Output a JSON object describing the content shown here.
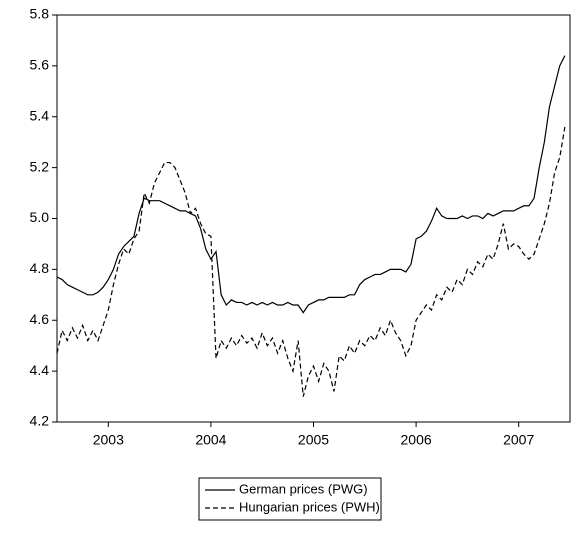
{
  "chart_data": {
    "type": "line",
    "x": [
      2003.0,
      2003.05,
      2003.1,
      2003.15,
      2003.2,
      2003.25,
      2003.3,
      2003.35,
      2003.4,
      2003.45,
      2003.5,
      2003.55,
      2003.6,
      2003.65,
      2003.7,
      2003.75,
      2003.8,
      2003.85,
      2003.9,
      2003.95,
      2004.0,
      2004.05,
      2004.1,
      2004.15,
      2004.2,
      2004.25,
      2004.3,
      2004.35,
      2004.4,
      2004.45,
      2004.5,
      2004.55,
      2004.6,
      2004.65,
      2004.7,
      2004.75,
      2004.8,
      2004.85,
      2004.9,
      2004.95,
      2005.0,
      2005.05,
      2005.1,
      2005.15,
      2005.2,
      2005.25,
      2005.3,
      2005.35,
      2005.4,
      2005.45,
      2005.5,
      2005.55,
      2005.6,
      2005.65,
      2005.7,
      2005.75,
      2005.8,
      2005.85,
      2005.9,
      2005.95,
      2006.0,
      2006.05,
      2006.1,
      2006.15,
      2006.2,
      2006.25,
      2006.3,
      2006.35,
      2006.4,
      2006.45,
      2006.5,
      2006.55,
      2006.6,
      2006.65,
      2006.7,
      2006.75,
      2006.8,
      2006.85,
      2006.9,
      2006.95,
      2007.0,
      2007.05,
      2007.1,
      2007.15,
      2007.2,
      2007.25,
      2007.3,
      2007.35,
      2007.4,
      2007.45,
      2007.5,
      2007.55,
      2007.6,
      2007.65,
      2007.7,
      2007.75,
      2007.8,
      2007.85,
      2007.9,
      2007.95
    ],
    "series": [
      {
        "name": "German prices (PWG)",
        "color": "#000000",
        "dash": "solid",
        "values": [
          4.77,
          4.76,
          4.74,
          4.73,
          4.72,
          4.71,
          4.7,
          4.7,
          4.71,
          4.73,
          4.76,
          4.8,
          4.86,
          4.89,
          4.91,
          4.93,
          5.02,
          5.08,
          5.07,
          5.07,
          5.07,
          5.06,
          5.05,
          5.04,
          5.03,
          5.03,
          5.02,
          5.01,
          4.96,
          4.88,
          4.84,
          4.87,
          4.7,
          4.66,
          4.68,
          4.67,
          4.67,
          4.66,
          4.67,
          4.66,
          4.67,
          4.66,
          4.67,
          4.66,
          4.66,
          4.67,
          4.66,
          4.66,
          4.63,
          4.66,
          4.67,
          4.68,
          4.68,
          4.69,
          4.69,
          4.69,
          4.69,
          4.7,
          4.7,
          4.74,
          4.76,
          4.77,
          4.78,
          4.78,
          4.79,
          4.8,
          4.8,
          4.8,
          4.79,
          4.82,
          4.92,
          4.93,
          4.95,
          4.99,
          5.04,
          5.01,
          5.0,
          5.0,
          5.0,
          5.01,
          5.0,
          5.01,
          5.01,
          5.0,
          5.02,
          5.01,
          5.02,
          5.03,
          5.03,
          5.03,
          5.04,
          5.05,
          5.05,
          5.08,
          5.2,
          5.3,
          5.44,
          5.52,
          5.6,
          5.64
        ]
      },
      {
        "name": "Hungarian prices (PWH)",
        "color": "#000000",
        "dash": "dashed",
        "values": [
          4.47,
          4.56,
          4.52,
          4.57,
          4.53,
          4.58,
          4.52,
          4.56,
          4.52,
          4.58,
          4.64,
          4.74,
          4.82,
          4.88,
          4.86,
          4.92,
          4.95,
          5.1,
          5.06,
          5.14,
          5.18,
          5.22,
          5.22,
          5.2,
          5.15,
          5.1,
          5.02,
          5.04,
          4.98,
          4.94,
          4.93,
          4.45,
          4.52,
          4.49,
          4.53,
          4.5,
          4.54,
          4.51,
          4.53,
          4.49,
          4.55,
          4.5,
          4.53,
          4.47,
          4.52,
          4.45,
          4.4,
          4.52,
          4.3,
          4.38,
          4.42,
          4.36,
          4.43,
          4.4,
          4.32,
          4.46,
          4.44,
          4.5,
          4.47,
          4.52,
          4.5,
          4.54,
          4.52,
          4.57,
          4.54,
          4.6,
          4.55,
          4.52,
          4.46,
          4.5,
          4.6,
          4.63,
          4.66,
          4.64,
          4.7,
          4.68,
          4.73,
          4.71,
          4.76,
          4.74,
          4.8,
          4.78,
          4.83,
          4.81,
          4.86,
          4.84,
          4.9,
          4.98,
          4.88,
          4.9,
          4.89,
          4.86,
          4.84,
          4.86,
          4.92,
          4.98,
          5.06,
          5.18,
          5.24,
          5.36
        ]
      }
    ],
    "xlim": [
      2003,
      2008
    ],
    "xticks": [
      {
        "value": 2003.5,
        "label": "2003"
      },
      {
        "value": 2004.5,
        "label": "2004"
      },
      {
        "value": 2005.5,
        "label": "2005"
      },
      {
        "value": 2006.5,
        "label": "2006"
      },
      {
        "value": 2007.5,
        "label": "2007"
      }
    ],
    "ylim": [
      4.2,
      5.8
    ],
    "yticks": [
      4.2,
      4.4,
      4.6,
      4.8,
      {
        "value": 5,
        "label": "5.0"
      },
      5.2,
      5.4,
      5.6,
      5.8
    ],
    "grid": false,
    "legend": "bottom"
  }
}
